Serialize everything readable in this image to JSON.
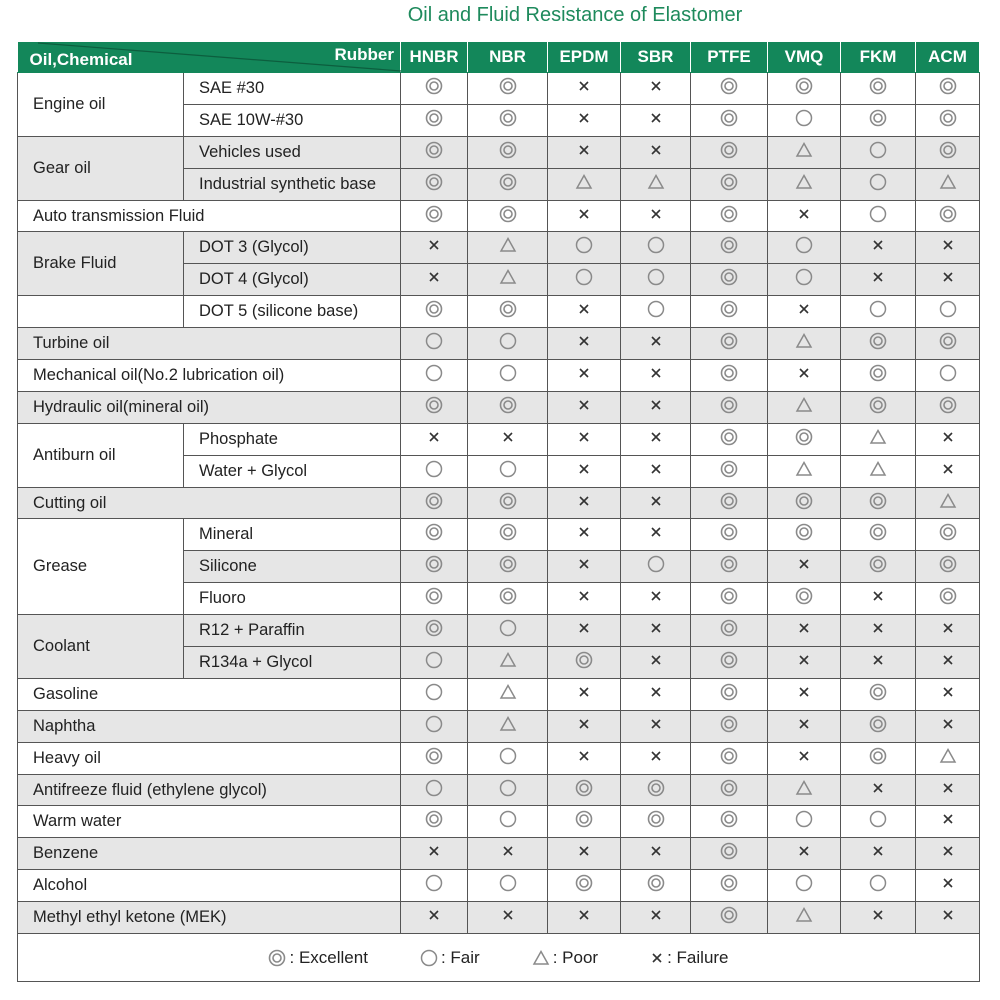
{
  "title": "Oil and Fluid Resistance of Elastomer",
  "header": {
    "row_label": "Oil,Chemical",
    "col_label": "Rubber",
    "columns": [
      "HNBR",
      "NBR",
      "EPDM",
      "SBR",
      "PTFE",
      "VMQ",
      "FKM",
      "ACM"
    ]
  },
  "legend": [
    {
      "code": "E",
      "icon": "double-circle-icon",
      "label": "Excellent"
    },
    {
      "code": "F",
      "icon": "circle-icon",
      "label": "Fair"
    },
    {
      "code": "P",
      "icon": "triangle-icon",
      "label": "Poor"
    },
    {
      "code": "X",
      "icon": "cross-icon",
      "label": "Failure"
    }
  ],
  "legend_separator": ":",
  "groups": [
    {
      "name": "Engine oil",
      "shaded": false,
      "rows": [
        {
          "sub": "SAE #30",
          "values": [
            "E",
            "E",
            "X",
            "X",
            "E",
            "E",
            "E",
            "E"
          ]
        },
        {
          "sub": "SAE 10W-#30",
          "values": [
            "E",
            "E",
            "X",
            "X",
            "E",
            "F",
            "E",
            "E"
          ]
        }
      ]
    },
    {
      "name": "Gear oil",
      "shaded": true,
      "rows": [
        {
          "sub": "Vehicles used",
          "values": [
            "E",
            "E",
            "X",
            "X",
            "E",
            "P",
            "F",
            "E"
          ]
        },
        {
          "sub": "Industrial synthetic base",
          "values": [
            "E",
            "E",
            "P",
            "P",
            "E",
            "P",
            "F",
            "P"
          ]
        }
      ]
    },
    {
      "name": "Auto transmission Fluid",
      "shaded": false,
      "rows": [
        {
          "sub": null,
          "values": [
            "E",
            "E",
            "X",
            "X",
            "E",
            "X",
            "F",
            "E"
          ]
        }
      ]
    },
    {
      "name": "Brake Fluid",
      "shaded": true,
      "rows": [
        {
          "sub": "DOT 3 (Glycol)",
          "values": [
            "X",
            "P",
            "F",
            "F",
            "E",
            "F",
            "X",
            "X"
          ]
        },
        {
          "sub": "DOT 4 (Glycol)",
          "values": [
            "X",
            "P",
            "F",
            "F",
            "E",
            "F",
            "X",
            "X"
          ]
        }
      ]
    },
    {
      "name": "",
      "shaded": false,
      "rows": [
        {
          "sub": "DOT 5 (silicone base)",
          "values": [
            "E",
            "E",
            "X",
            "F",
            "E",
            "X",
            "F",
            "F"
          ]
        }
      ]
    },
    {
      "name": "Turbine oil",
      "shaded": true,
      "rows": [
        {
          "sub": null,
          "values": [
            "F",
            "F",
            "X",
            "X",
            "E",
            "P",
            "E",
            "E"
          ]
        }
      ]
    },
    {
      "name": "Mechanical oil(No.2 lubrication oil)",
      "shaded": false,
      "rows": [
        {
          "sub": null,
          "values": [
            "F",
            "F",
            "X",
            "X",
            "E",
            "X",
            "E",
            "F"
          ]
        }
      ]
    },
    {
      "name": "Hydraulic oil(mineral oil)",
      "shaded": true,
      "rows": [
        {
          "sub": null,
          "values": [
            "E",
            "E",
            "X",
            "X",
            "E",
            "P",
            "E",
            "E"
          ]
        }
      ]
    },
    {
      "name": "Antiburn oil",
      "shaded": false,
      "rows": [
        {
          "sub": "Phosphate",
          "values": [
            "X",
            "X",
            "X",
            "X",
            "E",
            "E",
            "P",
            "X"
          ]
        },
        {
          "sub": "Water + Glycol",
          "values": [
            "F",
            "F",
            "X",
            "X",
            "E",
            "P",
            "P",
            "X"
          ]
        }
      ]
    },
    {
      "name": "Cutting oil",
      "shaded": true,
      "rows": [
        {
          "sub": null,
          "values": [
            "E",
            "E",
            "X",
            "X",
            "E",
            "E",
            "E",
            "P"
          ]
        }
      ]
    },
    {
      "name": "Grease",
      "shaded": false,
      "rows": [
        {
          "sub": "Mineral",
          "values": [
            "E",
            "E",
            "X",
            "X",
            "E",
            "E",
            "E",
            "E"
          ],
          "shaded": false
        },
        {
          "sub": "Silicone",
          "values": [
            "E",
            "E",
            "X",
            "F",
            "E",
            "X",
            "E",
            "E"
          ],
          "shaded": true
        },
        {
          "sub": "Fluoro",
          "values": [
            "E",
            "E",
            "X",
            "X",
            "E",
            "E",
            "X",
            "E"
          ],
          "shaded": false
        }
      ]
    },
    {
      "name": "Coolant",
      "shaded": true,
      "rows": [
        {
          "sub": "R12 + Paraffin",
          "values": [
            "E",
            "F",
            "X",
            "X",
            "E",
            "X",
            "X",
            "X"
          ]
        },
        {
          "sub": "R134a + Glycol",
          "values": [
            "F",
            "P",
            "E",
            "X",
            "E",
            "X",
            "X",
            "X"
          ]
        }
      ]
    },
    {
      "name": "Gasoline",
      "shaded": false,
      "rows": [
        {
          "sub": null,
          "values": [
            "F",
            "P",
            "X",
            "X",
            "E",
            "X",
            "E",
            "X"
          ]
        }
      ]
    },
    {
      "name": "Naphtha",
      "shaded": true,
      "rows": [
        {
          "sub": null,
          "values": [
            "F",
            "P",
            "X",
            "X",
            "E",
            "X",
            "E",
            "X"
          ]
        }
      ]
    },
    {
      "name": "Heavy oil",
      "shaded": false,
      "rows": [
        {
          "sub": null,
          "values": [
            "E",
            "F",
            "X",
            "X",
            "E",
            "X",
            "E",
            "P"
          ]
        }
      ]
    },
    {
      "name": "Antifreeze fluid (ethylene glycol)",
      "shaded": true,
      "rows": [
        {
          "sub": null,
          "values": [
            "F",
            "F",
            "E",
            "E",
            "E",
            "P",
            "X",
            "X"
          ]
        }
      ]
    },
    {
      "name": "Warm water",
      "shaded": false,
      "rows": [
        {
          "sub": null,
          "values": [
            "E",
            "F",
            "E",
            "E",
            "E",
            "F",
            "F",
            "X"
          ]
        }
      ]
    },
    {
      "name": "Benzene",
      "shaded": true,
      "rows": [
        {
          "sub": null,
          "values": [
            "X",
            "X",
            "X",
            "X",
            "E",
            "X",
            "X",
            "X"
          ]
        }
      ]
    },
    {
      "name": "Alcohol",
      "shaded": false,
      "rows": [
        {
          "sub": null,
          "values": [
            "F",
            "F",
            "E",
            "E",
            "E",
            "F",
            "F",
            "X"
          ]
        }
      ]
    },
    {
      "name": "Methyl ethyl ketone (MEK)",
      "shaded": true,
      "rows": [
        {
          "sub": null,
          "values": [
            "X",
            "X",
            "X",
            "X",
            "E",
            "P",
            "X",
            "X"
          ]
        }
      ]
    }
  ],
  "colors": {
    "brand_green": "#13875a",
    "title_green": "#1e8a5c",
    "shade": "#e6e6e6",
    "symbol": "#8a8a8a"
  }
}
